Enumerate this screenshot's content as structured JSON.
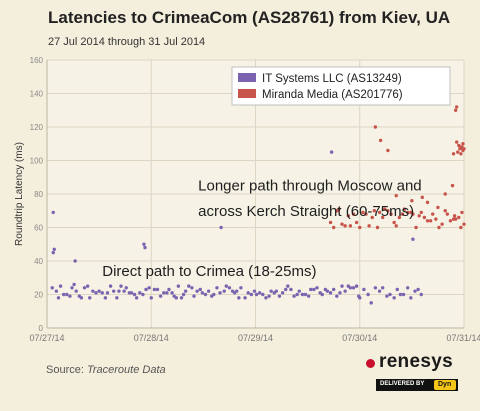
{
  "chart_data": {
    "type": "scatter",
    "title": "Latencies to CrimeaCom (AS28761) from Kiev, UA",
    "subtitle": "27 Jul 2014 through 31 Jul 2014",
    "ylabel": "Roundtrip Latency (ms)",
    "xlabel": "",
    "ylim": [
      0,
      160
    ],
    "yticks": [
      0,
      20,
      40,
      60,
      80,
      100,
      120,
      140,
      160
    ],
    "xlim": [
      "07/27/14",
      "07/31/14"
    ],
    "xticks": [
      "07/27/14",
      "07/28/14",
      "07/29/14",
      "07/30/14",
      "07/31/14"
    ],
    "grid": true,
    "legend_position": "top-right",
    "series": [
      {
        "name": "IT Systems LLC (AS13249)",
        "color": "#7b63b0",
        "points": [
          [
            0.05,
            24
          ],
          [
            0.06,
            69
          ],
          [
            0.06,
            45
          ],
          [
            0.07,
            47
          ],
          [
            0.09,
            22
          ],
          [
            0.11,
            18
          ],
          [
            0.13,
            25
          ],
          [
            0.16,
            20
          ],
          [
            0.19,
            20
          ],
          [
            0.22,
            19
          ],
          [
            0.24,
            24
          ],
          [
            0.26,
            26
          ],
          [
            0.27,
            40
          ],
          [
            0.28,
            22
          ],
          [
            0.31,
            19
          ],
          [
            0.33,
            18
          ],
          [
            0.36,
            24
          ],
          [
            0.39,
            25
          ],
          [
            0.41,
            18
          ],
          [
            0.44,
            22
          ],
          [
            0.47,
            21
          ],
          [
            0.5,
            22
          ],
          [
            0.53,
            21
          ],
          [
            0.56,
            18
          ],
          [
            0.58,
            21
          ],
          [
            0.61,
            25
          ],
          [
            0.64,
            22
          ],
          [
            0.67,
            18
          ],
          [
            0.69,
            22
          ],
          [
            0.71,
            25
          ],
          [
            0.74,
            22
          ],
          [
            0.76,
            24
          ],
          [
            0.79,
            21
          ],
          [
            0.81,
            21
          ],
          [
            0.84,
            20
          ],
          [
            0.86,
            18
          ],
          [
            0.89,
            21
          ],
          [
            0.92,
            20
          ],
          [
            0.93,
            50
          ],
          [
            0.94,
            48
          ],
          [
            0.95,
            23
          ],
          [
            0.98,
            24
          ],
          [
            1.0,
            18
          ],
          [
            1.03,
            23
          ],
          [
            1.06,
            23
          ],
          [
            1.09,
            19
          ],
          [
            1.12,
            21
          ],
          [
            1.15,
            21
          ],
          [
            1.17,
            23
          ],
          [
            1.2,
            21
          ],
          [
            1.22,
            19
          ],
          [
            1.24,
            18
          ],
          [
            1.26,
            25
          ],
          [
            1.29,
            18
          ],
          [
            1.31,
            20
          ],
          [
            1.33,
            22
          ],
          [
            1.36,
            25
          ],
          [
            1.39,
            24
          ],
          [
            1.41,
            19
          ],
          [
            1.44,
            22
          ],
          [
            1.47,
            23
          ],
          [
            1.49,
            21
          ],
          [
            1.52,
            20
          ],
          [
            1.55,
            22
          ],
          [
            1.58,
            19
          ],
          [
            1.6,
            20
          ],
          [
            1.63,
            24
          ],
          [
            1.66,
            21
          ],
          [
            1.67,
            60
          ],
          [
            1.7,
            22
          ],
          [
            1.72,
            25
          ],
          [
            1.75,
            24
          ],
          [
            1.78,
            22
          ],
          [
            1.8,
            21
          ],
          [
            1.82,
            22
          ],
          [
            1.84,
            18
          ],
          [
            1.86,
            24
          ],
          [
            1.9,
            18
          ],
          [
            1.93,
            21
          ],
          [
            1.96,
            20
          ],
          [
            1.99,
            22
          ],
          [
            2.01,
            20
          ],
          [
            2.04,
            21
          ],
          [
            2.07,
            20
          ],
          [
            2.1,
            18
          ],
          [
            2.13,
            19
          ],
          [
            2.15,
            22
          ],
          [
            2.18,
            21
          ],
          [
            2.2,
            22
          ],
          [
            2.23,
            19
          ],
          [
            2.26,
            21
          ],
          [
            2.29,
            23
          ],
          [
            2.31,
            25
          ],
          [
            2.34,
            23
          ],
          [
            2.37,
            19
          ],
          [
            2.4,
            20
          ],
          [
            2.42,
            22
          ],
          [
            2.45,
            20
          ],
          [
            2.48,
            20
          ],
          [
            2.51,
            19
          ],
          [
            2.53,
            23
          ],
          [
            2.56,
            23
          ],
          [
            2.59,
            24
          ],
          [
            2.62,
            21
          ],
          [
            2.64,
            20
          ],
          [
            2.67,
            23
          ],
          [
            2.69,
            22
          ],
          [
            2.72,
            21
          ],
          [
            2.73,
            105
          ],
          [
            2.75,
            23
          ],
          [
            2.78,
            19
          ],
          [
            2.81,
            21
          ],
          [
            2.83,
            25
          ],
          [
            2.86,
            22
          ],
          [
            2.89,
            25
          ],
          [
            2.91,
            24
          ],
          [
            2.94,
            24
          ],
          [
            2.97,
            25
          ],
          [
            2.99,
            19
          ],
          [
            3.0,
            18
          ],
          [
            3.04,
            23
          ],
          [
            3.08,
            20
          ],
          [
            3.11,
            15
          ],
          [
            3.15,
            24
          ],
          [
            3.19,
            22
          ],
          [
            3.22,
            24
          ],
          [
            3.26,
            19
          ],
          [
            3.29,
            20
          ],
          [
            3.33,
            18
          ],
          [
            3.36,
            23
          ],
          [
            3.39,
            20
          ],
          [
            3.42,
            20
          ],
          [
            3.46,
            24
          ],
          [
            3.49,
            18
          ],
          [
            3.51,
            53
          ],
          [
            3.53,
            22
          ],
          [
            3.56,
            23
          ],
          [
            3.59,
            20
          ]
        ]
      },
      {
        "name": "Miranda Media (AS201776)",
        "color": "#c9544c",
        "points": [
          [
            2.72,
            63
          ],
          [
            2.75,
            60
          ],
          [
            2.78,
            70
          ],
          [
            2.8,
            71
          ],
          [
            2.83,
            62
          ],
          [
            2.86,
            61
          ],
          [
            2.89,
            67
          ],
          [
            2.91,
            61
          ],
          [
            2.94,
            68
          ],
          [
            2.97,
            63
          ],
          [
            3.0,
            60
          ],
          [
            3.03,
            69
          ],
          [
            3.06,
            68
          ],
          [
            3.09,
            61
          ],
          [
            3.12,
            66
          ],
          [
            3.14,
            70
          ],
          [
            3.17,
            60
          ],
          [
            3.19,
            69
          ],
          [
            3.22,
            66
          ],
          [
            3.24,
            71
          ],
          [
            3.27,
            70
          ],
          [
            3.3,
            68
          ],
          [
            3.33,
            63
          ],
          [
            3.35,
            61
          ],
          [
            3.38,
            66
          ],
          [
            3.41,
            68
          ],
          [
            3.43,
            71
          ],
          [
            3.46,
            69
          ],
          [
            3.49,
            69
          ],
          [
            3.51,
            68
          ],
          [
            3.54,
            60
          ],
          [
            3.57,
            67
          ],
          [
            3.59,
            69
          ],
          [
            3.62,
            66
          ],
          [
            3.65,
            64
          ],
          [
            3.68,
            64
          ],
          [
            3.7,
            68
          ],
          [
            3.73,
            65
          ],
          [
            3.76,
            60
          ],
          [
            3.79,
            62
          ],
          [
            3.82,
            70
          ],
          [
            3.84,
            68
          ],
          [
            3.87,
            64
          ],
          [
            3.9,
            65
          ],
          [
            3.92,
            65
          ],
          [
            3.95,
            66
          ],
          [
            3.98,
            69
          ],
          [
            3.15,
            120
          ],
          [
            3.2,
            112
          ],
          [
            3.27,
            106
          ],
          [
            3.35,
            79
          ],
          [
            3.5,
            76
          ],
          [
            3.6,
            78
          ],
          [
            3.65,
            75
          ],
          [
            3.75,
            72
          ],
          [
            3.82,
            80
          ],
          [
            3.89,
            85
          ],
          [
            3.9,
            104
          ],
          [
            3.92,
            130
          ],
          [
            3.93,
            132
          ],
          [
            3.95,
            109
          ],
          [
            3.96,
            107
          ],
          [
            3.97,
            108
          ],
          [
            3.98,
            108
          ],
          [
            3.99,
            106
          ],
          [
            4.0,
            107
          ],
          [
            3.93,
            111
          ],
          [
            3.97,
            104
          ],
          [
            3.94,
            105
          ],
          [
            3.99,
            110
          ],
          [
            3.91,
            67
          ],
          [
            3.97,
            60
          ],
          [
            4.0,
            62
          ]
        ]
      }
    ],
    "annotations": [
      {
        "text": "Longer path through Moscow and",
        "x": 1.45,
        "y": 82
      },
      {
        "text": "across Kerch Straight (60-75ms)",
        "x": 1.45,
        "y": 67
      },
      {
        "text": "Direct path to Crimea (18-25ms)",
        "x": 0.53,
        "y": 31
      }
    ]
  },
  "footer": {
    "source_prefix": "Source: ",
    "source_name": "Traceroute Data"
  },
  "logo": {
    "name": "renesys",
    "delivered_by": "DELIVERED BY",
    "dyn": "Dyn"
  }
}
